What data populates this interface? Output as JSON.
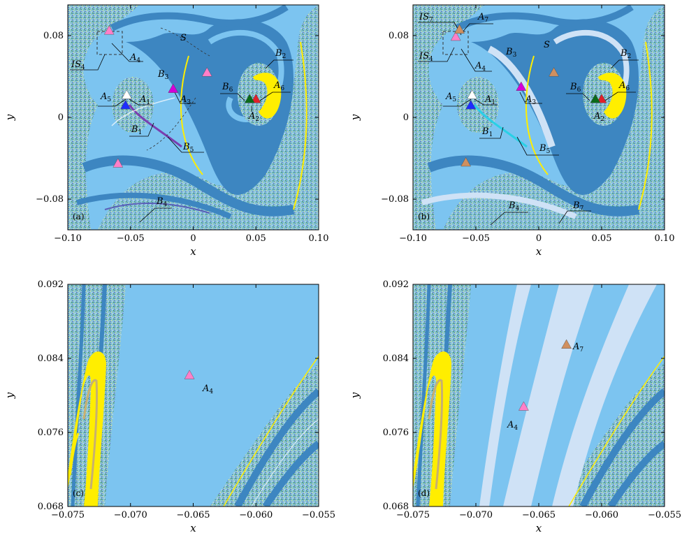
{
  "chart_data": [
    {
      "type": "heatmap",
      "panel_label": "(a)",
      "xlabel": "x",
      "ylabel": "y",
      "xlim": [
        -0.1,
        0.1
      ],
      "ylim": [
        -0.11,
        0.11
      ],
      "xticks": [
        -0.1,
        -0.05,
        0,
        0.05,
        0.1
      ],
      "xtick_labels": [
        "−0.10",
        "−0.05",
        "0",
        "0.05",
        "0.10"
      ],
      "yticks": [
        -0.08,
        0,
        0.08
      ],
      "ytick_labels": [
        "−0.08",
        "0",
        "0.08"
      ],
      "points": [
        {
          "name": "A1",
          "x": -0.053,
          "y": 0.022,
          "color": "#ffffff"
        },
        {
          "name": "A2",
          "x": 0.05,
          "y": 0.018,
          "color": "#e0202a"
        },
        {
          "name": "A3",
          "x": -0.016,
          "y": 0.028,
          "color": "#d400d8"
        },
        {
          "name": "A4",
          "x": -0.067,
          "y": 0.085,
          "color": "#ff7fc8"
        },
        {
          "name": "A5",
          "x": -0.054,
          "y": 0.012,
          "color": "#1e2cff"
        },
        {
          "name": "A6",
          "x": 0.045,
          "y": 0.018,
          "color": "#0b6a1a"
        },
        {
          "name": "",
          "x": 0.011,
          "y": 0.044,
          "color": "#ff7fc8"
        },
        {
          "name": "",
          "x": -0.06,
          "y": -0.045,
          "color": "#ff7fc8"
        }
      ],
      "labels": [
        "S",
        "B1",
        "B2",
        "B3",
        "B4",
        "B5",
        "B6",
        "IS4"
      ]
    },
    {
      "type": "heatmap",
      "panel_label": "(b)",
      "xlabel": "x",
      "ylabel": "y",
      "xlim": [
        -0.1,
        0.1
      ],
      "ylim": [
        -0.11,
        0.11
      ],
      "xticks": [
        -0.1,
        -0.05,
        0,
        0.05,
        0.1
      ],
      "xtick_labels": [
        "−0.10",
        "−0.05",
        "0",
        "0.05",
        "0.10"
      ],
      "yticks": [
        -0.08,
        0,
        0.08
      ],
      "ytick_labels": [
        "−0.08",
        "0",
        "0.08"
      ],
      "points": [
        {
          "name": "A1",
          "x": -0.053,
          "y": 0.022,
          "color": "#ffffff"
        },
        {
          "name": "A2",
          "x": 0.05,
          "y": 0.018,
          "color": "#e0202a"
        },
        {
          "name": "A3",
          "x": -0.014,
          "y": 0.03,
          "color": "#d400d8"
        },
        {
          "name": "A4",
          "x": -0.066,
          "y": 0.079,
          "color": "#ff7fc8"
        },
        {
          "name": "A5",
          "x": -0.054,
          "y": 0.012,
          "color": "#1e2cff"
        },
        {
          "name": "A6",
          "x": 0.045,
          "y": 0.018,
          "color": "#0b6a1a"
        },
        {
          "name": "A7",
          "x": -0.063,
          "y": 0.086,
          "color": "#d09060"
        },
        {
          "name": "",
          "x": 0.012,
          "y": 0.044,
          "color": "#d09060"
        },
        {
          "name": "",
          "x": -0.058,
          "y": -0.044,
          "color": "#d09060"
        }
      ],
      "labels": [
        "S",
        "B1",
        "B2",
        "B3",
        "B4",
        "B5",
        "B6",
        "B7",
        "IS4",
        "IS7"
      ]
    },
    {
      "type": "heatmap",
      "panel_label": "(c)",
      "xlabel": "x",
      "ylabel": "y",
      "xlim": [
        -0.075,
        -0.055
      ],
      "ylim": [
        0.068,
        0.092
      ],
      "xticks": [
        -0.075,
        -0.07,
        -0.065,
        -0.06,
        -0.055
      ],
      "xtick_labels": [
        "−0.075",
        "−0.070",
        "−0.065",
        "−0.060",
        "−0.055"
      ],
      "yticks": [
        0.068,
        0.076,
        0.084,
        0.092
      ],
      "ytick_labels": [
        "0.068",
        "0.076",
        "0.084",
        "0.092"
      ],
      "points": [
        {
          "name": "A4",
          "x": -0.0653,
          "y": 0.0822,
          "color": "#ff7fc8"
        }
      ]
    },
    {
      "type": "heatmap",
      "panel_label": "(d)",
      "xlabel": "x",
      "ylabel": "y",
      "xlim": [
        -0.075,
        -0.055
      ],
      "ylim": [
        0.068,
        0.092
      ],
      "xticks": [
        -0.075,
        -0.07,
        -0.065,
        -0.06,
        -0.055
      ],
      "xtick_labels": [
        "−0.075",
        "−0.070",
        "−0.065",
        "−0.060",
        "−0.055"
      ],
      "yticks": [
        0.068,
        0.076,
        0.084,
        0.092
      ],
      "ytick_labels": [
        "0.068",
        "0.076",
        "0.084",
        "0.092"
      ],
      "points": [
        {
          "name": "A4",
          "x": -0.0662,
          "y": 0.0788,
          "color": "#ff7fc8"
        },
        {
          "name": "A7",
          "x": -0.0628,
          "y": 0.0855,
          "color": "#d09060"
        }
      ]
    }
  ],
  "colors": {
    "background": "#7cc4f0",
    "dark_basin": "#3d86c1",
    "pale_basin": "#cfe2f6",
    "yellow": "#ffee00",
    "speckle_green": "#2e8f55"
  }
}
